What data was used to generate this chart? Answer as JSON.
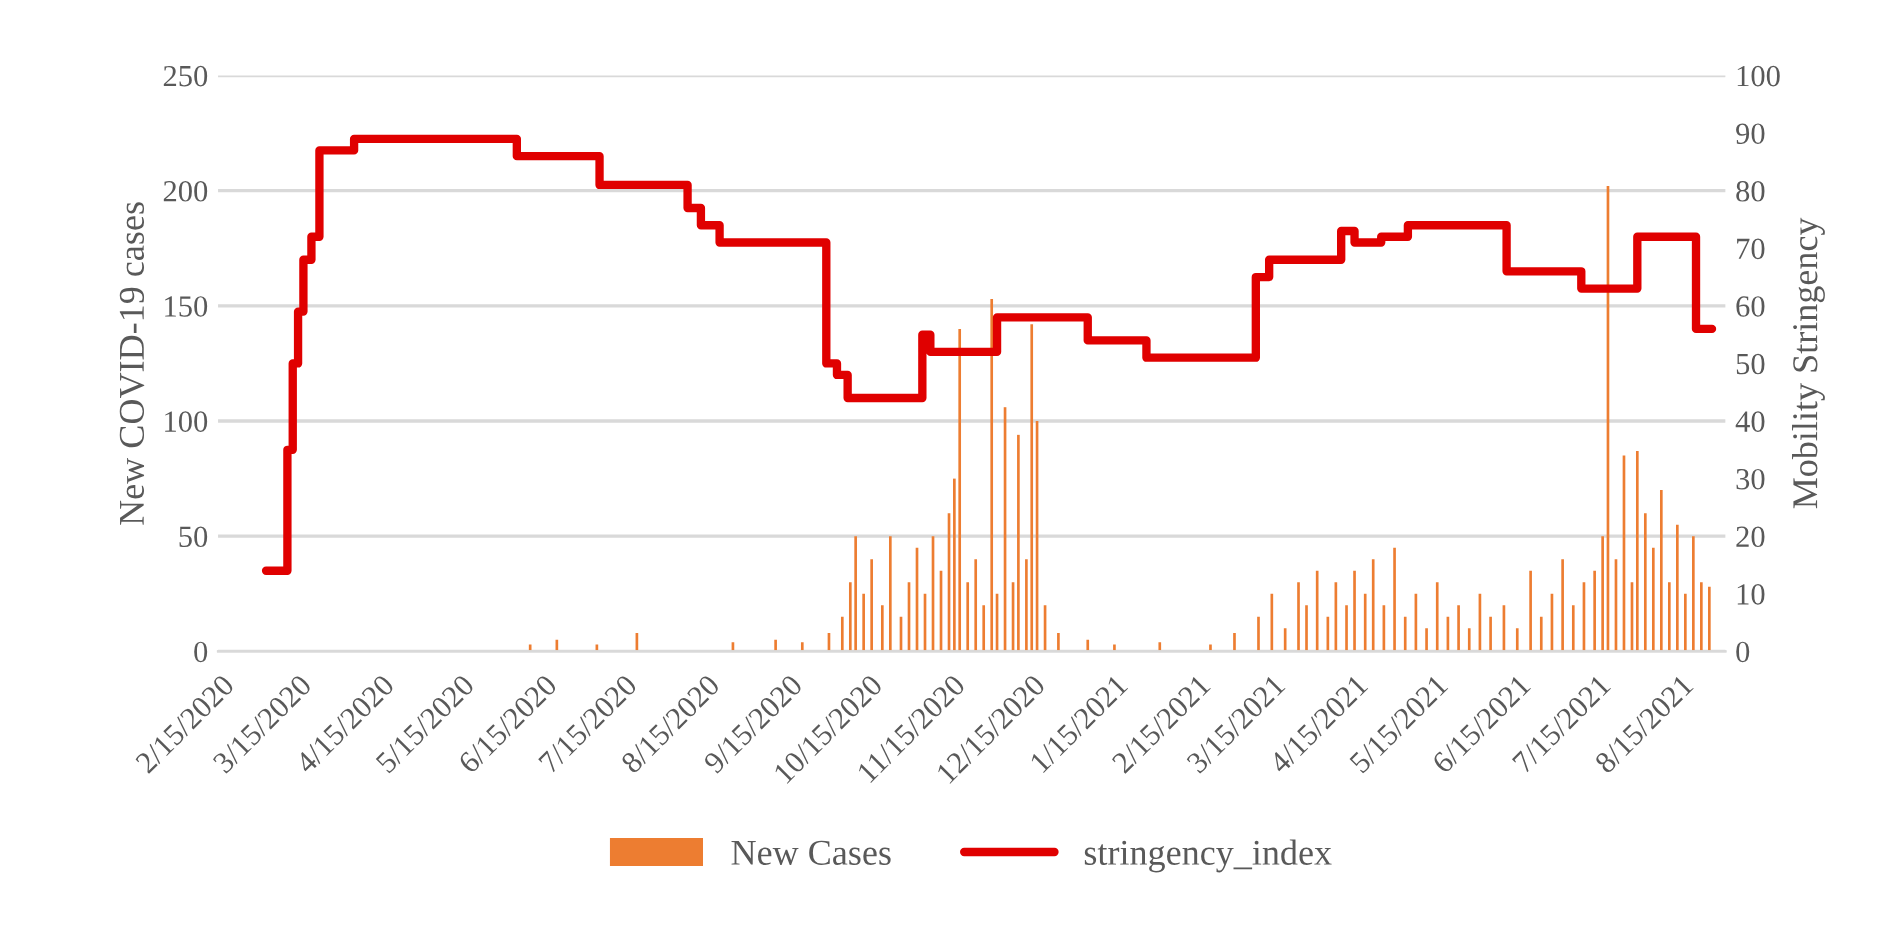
{
  "chart_data": {
    "type": "bar",
    "xlabel": null,
    "ylabel": "New COVID-19 cases",
    "y2label": "Mobility Stringency",
    "series": [
      {
        "name": "New Cases",
        "color": "#ed7d31",
        "x": [
          "2020-06-10",
          "2020-06-20",
          "2020-07-05",
          "2020-07-20",
          "2020-08-25",
          "2020-09-10",
          "2020-09-20",
          "2020-09-30",
          "2020-10-05",
          "2020-10-08",
          "2020-10-10",
          "2020-10-13",
          "2020-10-16",
          "2020-10-20",
          "2020-10-23",
          "2020-10-27",
          "2020-10-30",
          "2020-11-02",
          "2020-11-05",
          "2020-11-08",
          "2020-11-11",
          "2020-11-14",
          "2020-11-16",
          "2020-11-18",
          "2020-11-21",
          "2020-11-24",
          "2020-11-27",
          "2020-11-30",
          "2020-12-02",
          "2020-12-05",
          "2020-12-08",
          "2020-12-10",
          "2020-12-13",
          "2020-12-15",
          "2020-12-17",
          "2020-12-20",
          "2020-12-25",
          "2021-01-05",
          "2021-01-15",
          "2021-02-01",
          "2021-02-20",
          "2021-03-01",
          "2021-03-10",
          "2021-03-15",
          "2021-03-20",
          "2021-03-25",
          "2021-03-28",
          "2021-04-01",
          "2021-04-05",
          "2021-04-08",
          "2021-04-12",
          "2021-04-15",
          "2021-04-19",
          "2021-04-22",
          "2021-04-26",
          "2021-04-30",
          "2021-05-04",
          "2021-05-08",
          "2021-05-12",
          "2021-05-16",
          "2021-05-20",
          "2021-05-24",
          "2021-05-28",
          "2021-06-01",
          "2021-06-05",
          "2021-06-10",
          "2021-06-15",
          "2021-06-20",
          "2021-06-24",
          "2021-06-28",
          "2021-07-02",
          "2021-07-06",
          "2021-07-10",
          "2021-07-14",
          "2021-07-17",
          "2021-07-19",
          "2021-07-22",
          "2021-07-25",
          "2021-07-28",
          "2021-07-30",
          "2021-08-02",
          "2021-08-05",
          "2021-08-08",
          "2021-08-11",
          "2021-08-14",
          "2021-08-17",
          "2021-08-20",
          "2021-08-23",
          "2021-08-26"
        ],
        "values": [
          3,
          5,
          3,
          8,
          4,
          5,
          4,
          8,
          15,
          30,
          50,
          25,
          40,
          20,
          50,
          15,
          30,
          45,
          25,
          50,
          35,
          60,
          75,
          140,
          30,
          40,
          20,
          153,
          25,
          106,
          30,
          94,
          40,
          142,
          100,
          20,
          8,
          5,
          3,
          4,
          3,
          8,
          15,
          25,
          10,
          30,
          20,
          35,
          15,
          30,
          20,
          35,
          25,
          40,
          20,
          45,
          15,
          25,
          10,
          30,
          15,
          20,
          10,
          25,
          15,
          20,
          10,
          35,
          15,
          25,
          40,
          20,
          30,
          35,
          50,
          202,
          40,
          85,
          30,
          87,
          60,
          45,
          70,
          30,
          55,
          25,
          50,
          30,
          28
        ]
      },
      {
        "name": "stringency_index",
        "type": "step",
        "axis": "y2",
        "color": "#e00000",
        "x": [
          "2020-03-03",
          "2020-03-11",
          "2020-03-13",
          "2020-03-15",
          "2020-03-17",
          "2020-03-20",
          "2020-03-23",
          "2020-04-05",
          "2020-06-05",
          "2020-07-06",
          "2020-08-08",
          "2020-08-13",
          "2020-08-20",
          "2020-09-29",
          "2020-10-03",
          "2020-10-07",
          "2020-11-04",
          "2020-11-07",
          "2020-12-02",
          "2021-01-05",
          "2021-01-27",
          "2021-03-09",
          "2021-03-14",
          "2021-04-10",
          "2021-04-15",
          "2021-04-25",
          "2021-05-05",
          "2021-06-11",
          "2021-07-09",
          "2021-07-30",
          "2021-08-21",
          "2021-08-27"
        ],
        "values": [
          14,
          35,
          50,
          59,
          68,
          72,
          87,
          89,
          86,
          81,
          77,
          74,
          71,
          50,
          48,
          44,
          55,
          52,
          58,
          54,
          51,
          65,
          68,
          73,
          71,
          72,
          74,
          66,
          63,
          72,
          56,
          56
        ]
      }
    ],
    "xlim": [
      "2020-02-14",
      "2021-09-01"
    ],
    "xticks": [
      {
        "value": "2020-02-15",
        "label": "2/15/2020"
      },
      {
        "value": "2020-03-15",
        "label": "3/15/2020"
      },
      {
        "value": "2020-04-15",
        "label": "4/15/2020"
      },
      {
        "value": "2020-05-15",
        "label": "5/15/2020"
      },
      {
        "value": "2020-06-15",
        "label": "6/15/2020"
      },
      {
        "value": "2020-07-15",
        "label": "7/15/2020"
      },
      {
        "value": "2020-08-15",
        "label": "8/15/2020"
      },
      {
        "value": "2020-09-15",
        "label": "9/15/2020"
      },
      {
        "value": "2020-10-15",
        "label": "10/15/2020"
      },
      {
        "value": "2020-11-15",
        "label": "11/15/2020"
      },
      {
        "value": "2020-12-15",
        "label": "12/15/2020"
      },
      {
        "value": "2021-01-15",
        "label": "1/15/2021"
      },
      {
        "value": "2021-02-15",
        "label": "2/15/2021"
      },
      {
        "value": "2021-03-15",
        "label": "3/15/2021"
      },
      {
        "value": "2021-04-15",
        "label": "4/15/2021"
      },
      {
        "value": "2021-05-15",
        "label": "5/15/2021"
      },
      {
        "value": "2021-06-15",
        "label": "6/15/2021"
      },
      {
        "value": "2021-07-15",
        "label": "7/15/2021"
      },
      {
        "value": "2021-08-15",
        "label": "8/15/2021"
      }
    ],
    "ylim": [
      0,
      250
    ],
    "yticks": [
      0,
      50,
      100,
      150,
      200,
      250
    ],
    "y2lim": [
      0,
      100
    ],
    "y2ticks": [
      0,
      10,
      20,
      30,
      40,
      50,
      60,
      70,
      80,
      90,
      100
    ],
    "grid": "y",
    "legend": "bottom"
  }
}
